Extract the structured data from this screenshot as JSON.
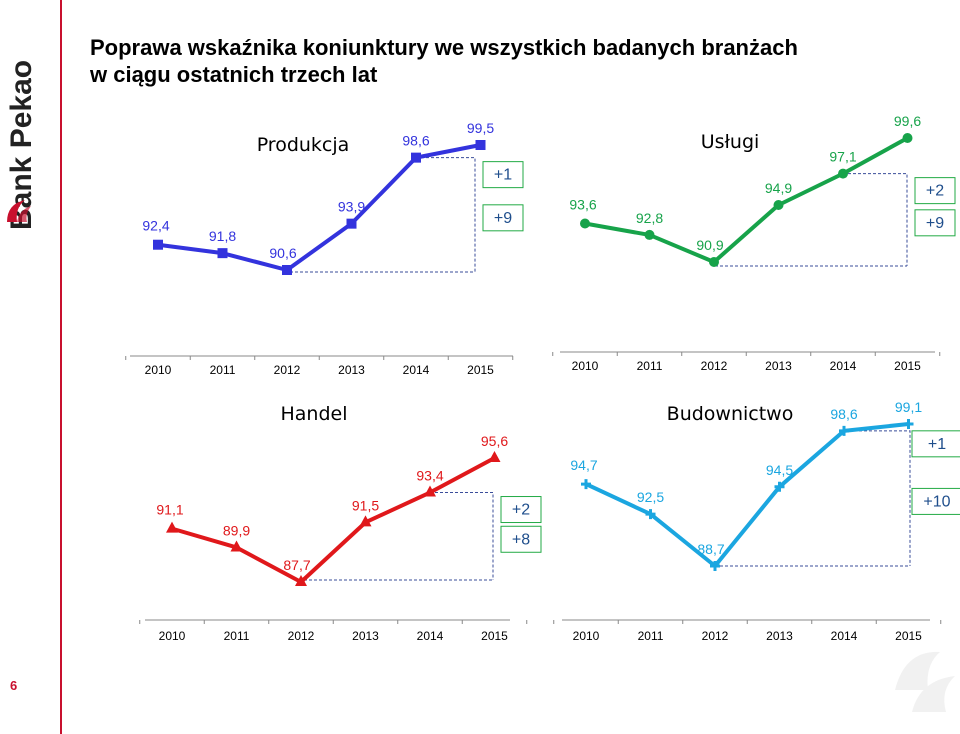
{
  "page": {
    "title_line1": "Poprawa wskaźnika koniunktury we wszystkich badanych branżach",
    "title_line2": "w ciągu ostatnich trzech lat",
    "page_number": "6",
    "logo_text": "Bank Pekao"
  },
  "chart_data": [
    {
      "type": "line",
      "title": "Produkcja",
      "categories": [
        "2010",
        "2011",
        "2012",
        "2013",
        "2014",
        "2015"
      ],
      "values": [
        92.4,
        91.8,
        90.6,
        93.9,
        98.6,
        99.5
      ],
      "labels": [
        "92,4",
        "91,8",
        "90,6",
        "93,9",
        "98,6",
        "99,5"
      ],
      "marker": "square",
      "color": "#3333dd",
      "annotations": [
        "+1",
        "+9"
      ]
    },
    {
      "type": "line",
      "title": "Usługi",
      "categories": [
        "2010",
        "2011",
        "2012",
        "2013",
        "2014",
        "2015"
      ],
      "values": [
        93.6,
        92.8,
        90.9,
        94.9,
        97.1,
        99.6
      ],
      "labels": [
        "93,6",
        "92,8",
        "90,9",
        "94,9",
        "97,1",
        "99,6"
      ],
      "marker": "circle",
      "color": "#17a34a",
      "annotations": [
        "+2",
        "+9"
      ]
    },
    {
      "type": "line",
      "title": "Handel",
      "categories": [
        "2010",
        "2011",
        "2012",
        "2013",
        "2014",
        "2015"
      ],
      "values": [
        91.1,
        89.9,
        87.7,
        91.5,
        93.4,
        95.6
      ],
      "labels": [
        "91,1",
        "89,9",
        "87,7",
        "91,5",
        "93,4",
        "95,6"
      ],
      "marker": "triangle",
      "color": "#e0181b",
      "annotations": [
        "+2",
        "+8"
      ]
    },
    {
      "type": "line",
      "title": "Budownictwo",
      "categories": [
        "2010",
        "2011",
        "2012",
        "2013",
        "2014",
        "2015"
      ],
      "values": [
        94.7,
        92.5,
        88.7,
        94.5,
        98.6,
        99.1
      ],
      "labels": [
        "94,7",
        "92,5",
        "88,7",
        "94,5",
        "98,6",
        "99,1"
      ],
      "marker": "cross",
      "color": "#1ba6e0",
      "annotations": [
        "+1",
        "+10"
      ]
    }
  ]
}
